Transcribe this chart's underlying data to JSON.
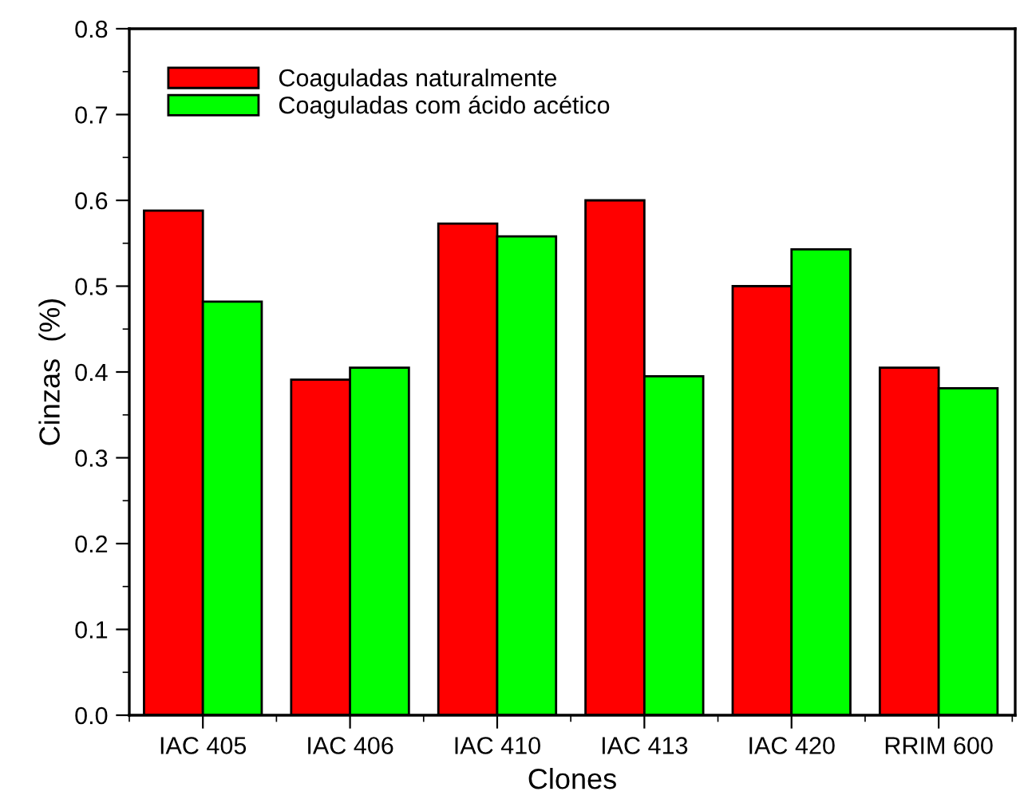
{
  "chart_data": {
    "type": "bar",
    "xlabel": "Clones",
    "ylabel": "Cinzas  (%)",
    "categories": [
      "IAC 405",
      "IAC 406",
      "IAC 410",
      "IAC 413",
      "IAC 420",
      "RRIM 600"
    ],
    "series": [
      {
        "name": "Coaguladas naturalmente",
        "color": "#ff0000",
        "values": [
          0.588,
          0.391,
          0.573,
          0.6,
          0.5,
          0.405
        ]
      },
      {
        "name": "Coaguladas com ácido acético",
        "color": "#00ff00",
        "values": [
          0.482,
          0.405,
          0.558,
          0.395,
          0.543,
          0.381
        ]
      }
    ],
    "ylim": [
      0.0,
      0.8
    ],
    "yticks": [
      {
        "value": 0.0,
        "label": "0.0"
      },
      0.1,
      0.2,
      0.3,
      0.4,
      0.5,
      0.6,
      0.7,
      0.8
    ],
    "legend": "top left",
    "grid": false
  }
}
